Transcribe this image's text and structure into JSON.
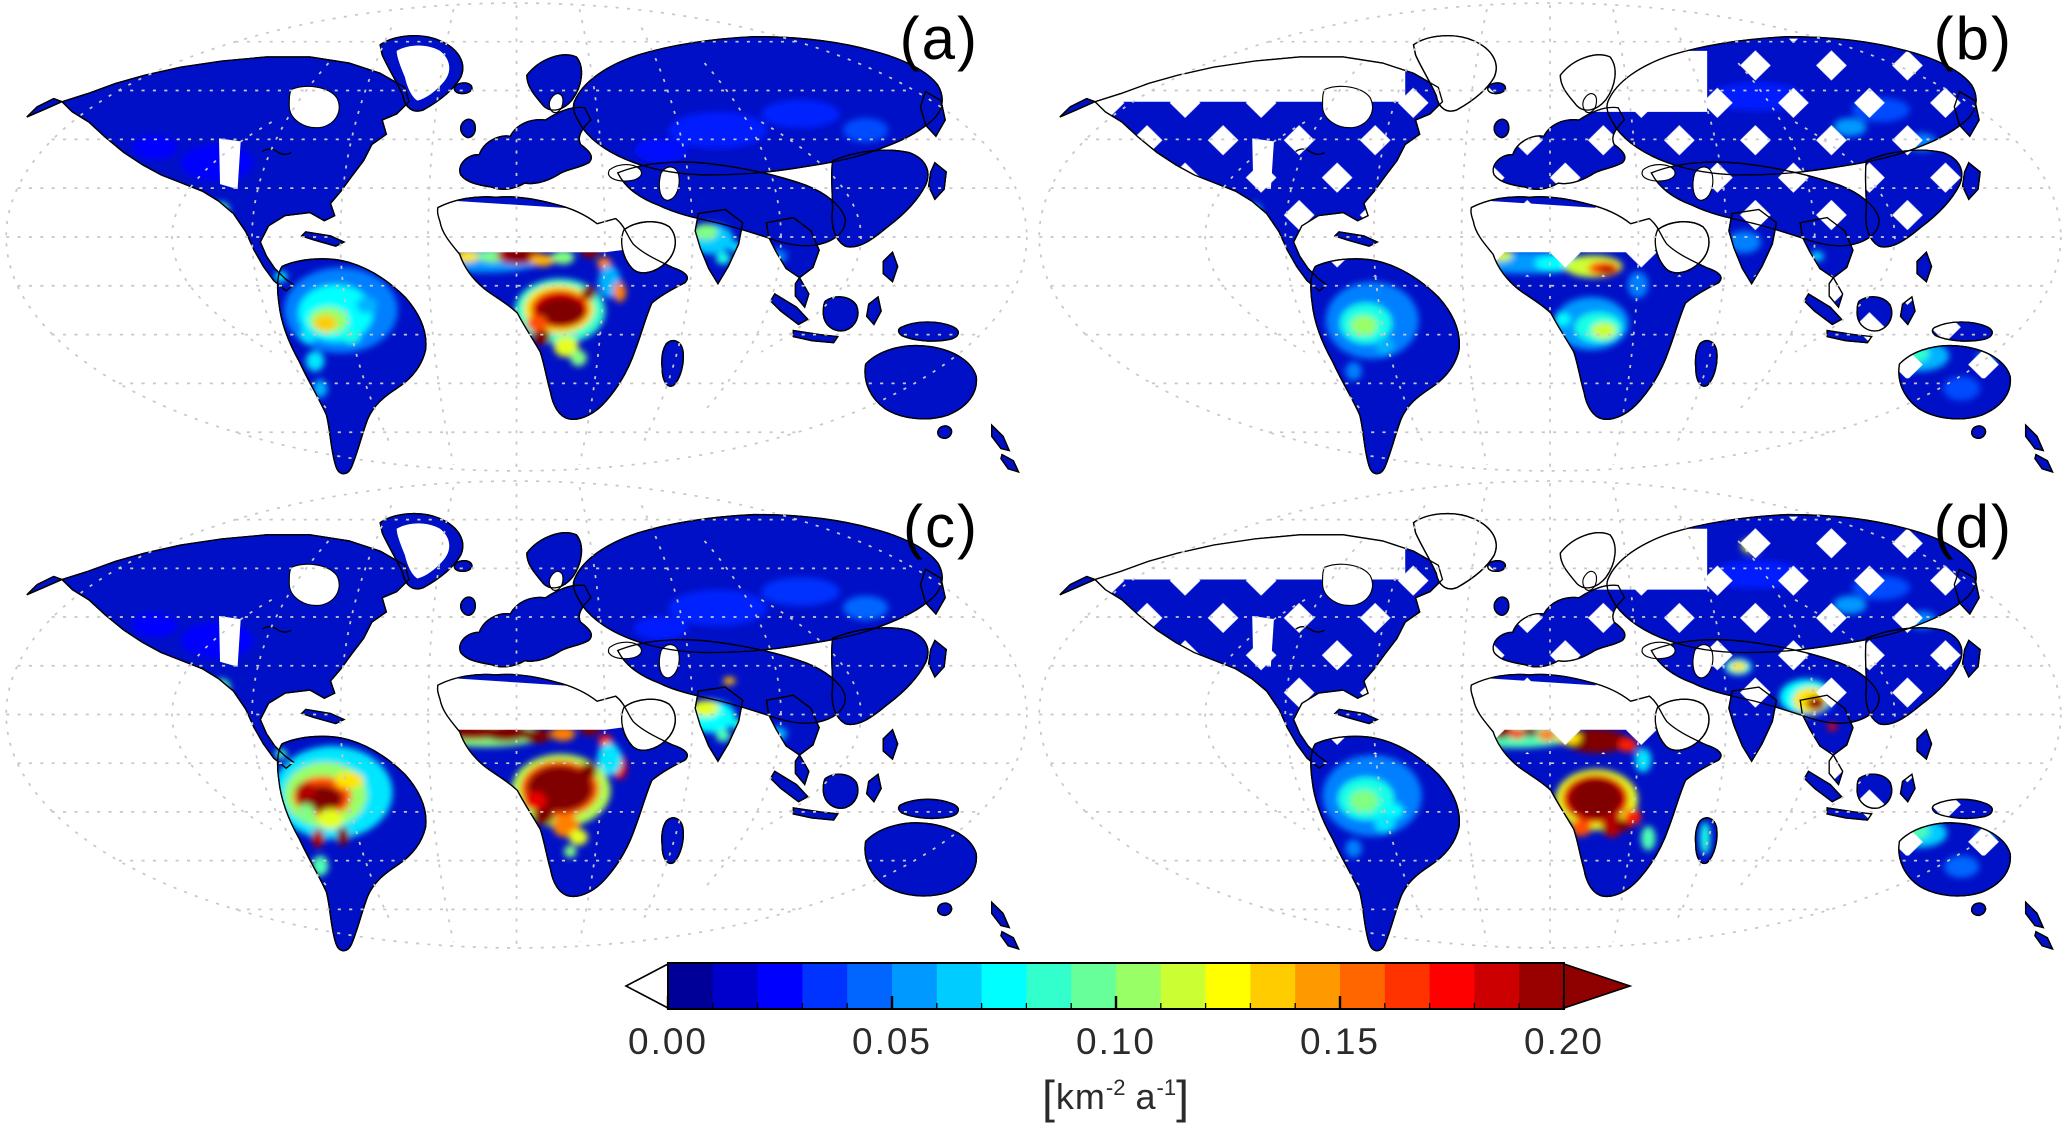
{
  "chart_data": {
    "type": "heatmap",
    "title": "",
    "description_visible_text_only": true,
    "projection": "global world map, white ocean, graticule dashed",
    "ocean_color": "#ffffff",
    "land_base_color": "#0010c6",
    "coastline_color": "#000000",
    "graticule_color": "#c8c8c8",
    "palette": [
      "#000099",
      "#0000ff",
      "#0040ff",
      "#0080ff",
      "#00ccff",
      "#00ffee",
      "#33ffbb",
      "#80ff80",
      "#ccff33",
      "#ffff00",
      "#ffcc00",
      "#ff8000",
      "#ff3300",
      "#cc0000",
      "#990000"
    ],
    "value_units": "km-2 a-1",
    "hotspot_format": "[x, y, rx, ry, value_km-2_a-1] in 1000x470 map coords, drawn bottom-to-top",
    "panels": [
      {
        "label": "(a)",
        "masked": false,
        "hotspots": [
          [
            470,
            256,
            55,
            12,
            0.055
          ],
          [
            452,
            252,
            12,
            6,
            0.13
          ],
          [
            437,
            248,
            9,
            6,
            0.2
          ],
          [
            478,
            252,
            16,
            6,
            0.1
          ],
          [
            502,
            251,
            21,
            9,
            0.19
          ],
          [
            502,
            251,
            13,
            6,
            0.23
          ],
          [
            525,
            256,
            12,
            6,
            0.14
          ],
          [
            545,
            253,
            11,
            7,
            0.1
          ],
          [
            571,
            246,
            9,
            8,
            0.21
          ],
          [
            585,
            259,
            7,
            6,
            0.15
          ],
          [
            590,
            277,
            11,
            16,
            0.06
          ],
          [
            600,
            287,
            6,
            10,
            0.15
          ],
          [
            542,
            306,
            44,
            32,
            0.085
          ],
          [
            541,
            304,
            34,
            24,
            0.13
          ],
          [
            542,
            304,
            28,
            19,
            0.18
          ],
          [
            543,
            306,
            23,
            14,
            0.24
          ],
          [
            570,
            288,
            7,
            7,
            0.22
          ],
          [
            524,
            331,
            9,
            8,
            0.2
          ],
          [
            548,
            341,
            12,
            10,
            0.12
          ],
          [
            560,
            352,
            8,
            8,
            0.1
          ],
          [
            520,
            318,
            10,
            8,
            0.16
          ],
          [
            330,
            305,
            55,
            42,
            0.05
          ],
          [
            325,
            308,
            36,
            28,
            0.075
          ],
          [
            318,
            315,
            19,
            13,
            0.105
          ],
          [
            315,
            318,
            11,
            8,
            0.135
          ],
          [
            305,
            355,
            9,
            10,
            0.07
          ],
          [
            310,
            382,
            7,
            9,
            0.06
          ],
          [
            340,
            330,
            9,
            8,
            0.08
          ],
          [
            298,
            330,
            8,
            8,
            0.07
          ],
          [
            355,
            300,
            10,
            8,
            0.06
          ],
          [
            688,
            235,
            22,
            15,
            0.065
          ],
          [
            683,
            228,
            12,
            8,
            0.1
          ],
          [
            700,
            254,
            7,
            6,
            0.08
          ],
          [
            712,
            243,
            6,
            5,
            0.07
          ],
          [
            752,
            252,
            10,
            7,
            0.05
          ],
          [
            760,
            283,
            5,
            4,
            0.06
          ],
          [
            214,
            206,
            8,
            7,
            0.085
          ],
          [
            272,
            272,
            6,
            5,
            0.075
          ],
          [
            695,
            128,
            48,
            18,
            0.03
          ],
          [
            775,
            112,
            38,
            14,
            0.032
          ],
          [
            640,
            148,
            26,
            12,
            0.028
          ],
          [
            838,
            128,
            22,
            12,
            0.04
          ],
          [
            210,
            160,
            35,
            18,
            0.025
          ],
          [
            150,
            145,
            22,
            12,
            0.025
          ]
        ]
      },
      {
        "label": "(b)",
        "masked": true,
        "hotspots": [
          [
            478,
            258,
            55,
            11,
            0.055
          ],
          [
            452,
            251,
            12,
            6,
            0.115
          ],
          [
            448,
            249,
            6,
            4,
            0.135
          ],
          [
            505,
            259,
            20,
            8,
            0.075
          ],
          [
            542,
            262,
            28,
            11,
            0.115
          ],
          [
            552,
            264,
            15,
            7,
            0.16
          ],
          [
            555,
            265,
            8,
            4,
            0.19
          ],
          [
            585,
            280,
            10,
            13,
            0.05
          ],
          [
            540,
            318,
            36,
            26,
            0.055
          ],
          [
            547,
            322,
            23,
            15,
            0.08
          ],
          [
            552,
            325,
            12,
            8,
            0.115
          ],
          [
            512,
            314,
            8,
            6,
            0.075
          ],
          [
            328,
            315,
            45,
            38,
            0.05
          ],
          [
            322,
            318,
            25,
            20,
            0.08
          ],
          [
            320,
            320,
            13,
            10,
            0.105
          ],
          [
            310,
            365,
            8,
            9,
            0.05
          ],
          [
            340,
            340,
            9,
            8,
            0.06
          ],
          [
            858,
            350,
            28,
            15,
            0.06
          ],
          [
            853,
            348,
            14,
            8,
            0.085
          ],
          [
            898,
            382,
            18,
            12,
            0.04
          ],
          [
            922,
            352,
            10,
            7,
            0.05
          ],
          [
            688,
            238,
            16,
            11,
            0.05
          ],
          [
            758,
            252,
            7,
            5,
            0.065
          ],
          [
            760,
            283,
            5,
            4,
            0.07
          ],
          [
            700,
            95,
            45,
            14,
            0.03
          ],
          [
            790,
            125,
            16,
            9,
            0.055
          ],
          [
            820,
            108,
            28,
            12,
            0.04
          ],
          [
            860,
            140,
            14,
            9,
            0.05
          ],
          [
            214,
            206,
            7,
            6,
            0.06
          ]
        ]
      },
      {
        "label": "(c)",
        "masked": false,
        "hotspots": [
          [
            470,
            253,
            58,
            12,
            0.1
          ],
          [
            455,
            250,
            40,
            8,
            0.19
          ],
          [
            452,
            249,
            30,
            7,
            0.24
          ],
          [
            437,
            248,
            10,
            7,
            0.24
          ],
          [
            490,
            251,
            22,
            9,
            0.25
          ],
          [
            520,
            254,
            14,
            7,
            0.2
          ],
          [
            545,
            252,
            12,
            7,
            0.15
          ],
          [
            571,
            246,
            10,
            8,
            0.24
          ],
          [
            586,
            259,
            7,
            6,
            0.17
          ],
          [
            600,
            285,
            7,
            12,
            0.18
          ],
          [
            590,
            277,
            12,
            16,
            0.07
          ],
          [
            543,
            308,
            48,
            36,
            0.11
          ],
          [
            542,
            306,
            38,
            28,
            0.16
          ],
          [
            542,
            306,
            32,
            23,
            0.21
          ],
          [
            543,
            307,
            27,
            18,
            0.25
          ],
          [
            570,
            288,
            8,
            8,
            0.24
          ],
          [
            526,
            333,
            10,
            9,
            0.23
          ],
          [
            548,
            343,
            13,
            11,
            0.15
          ],
          [
            560,
            354,
            9,
            8,
            0.12
          ],
          [
            518,
            318,
            11,
            9,
            0.18
          ],
          [
            552,
            368,
            6,
            6,
            0.1
          ],
          [
            322,
            310,
            58,
            46,
            0.07
          ],
          [
            315,
            312,
            40,
            32,
            0.105
          ],
          [
            312,
            314,
            28,
            20,
            0.16
          ],
          [
            310,
            316,
            22,
            13,
            0.22
          ],
          [
            296,
            308,
            10,
            8,
            0.19
          ],
          [
            308,
            355,
            6,
            9,
            0.19
          ],
          [
            332,
            353,
            6,
            9,
            0.2
          ],
          [
            320,
            336,
            12,
            10,
            0.12
          ],
          [
            310,
            382,
            8,
            10,
            0.09
          ],
          [
            296,
            330,
            9,
            9,
            0.1
          ],
          [
            338,
            298,
            14,
            8,
            0.13
          ],
          [
            688,
            235,
            24,
            16,
            0.075
          ],
          [
            683,
            227,
            13,
            8,
            0.12
          ],
          [
            706,
            200,
            6,
            4,
            0.14
          ],
          [
            700,
            254,
            7,
            6,
            0.09
          ],
          [
            715,
            243,
            7,
            5,
            0.08
          ],
          [
            214,
            206,
            9,
            8,
            0.09
          ],
          [
            272,
            272,
            6,
            5,
            0.085
          ],
          [
            752,
            252,
            10,
            7,
            0.06
          ],
          [
            695,
            128,
            48,
            18,
            0.032
          ],
          [
            775,
            112,
            38,
            14,
            0.035
          ],
          [
            640,
            148,
            26,
            12,
            0.03
          ],
          [
            838,
            128,
            22,
            12,
            0.045
          ],
          [
            210,
            160,
            35,
            18,
            0.026
          ],
          [
            150,
            145,
            22,
            12,
            0.026
          ]
        ]
      },
      {
        "label": "(d)",
        "masked": true,
        "hotspots": [
          [
            468,
            254,
            55,
            12,
            0.09
          ],
          [
            452,
            248,
            11,
            9,
            0.25
          ],
          [
            468,
            252,
            8,
            5,
            0.17
          ],
          [
            481,
            250,
            7,
            5,
            0.22
          ],
          [
            497,
            253,
            9,
            6,
            0.15
          ],
          [
            545,
            259,
            30,
            12,
            0.2
          ],
          [
            548,
            260,
            22,
            9,
            0.25
          ],
          [
            575,
            263,
            9,
            7,
            0.17
          ],
          [
            518,
            256,
            12,
            7,
            0.13
          ],
          [
            590,
            278,
            8,
            12,
            0.07
          ],
          [
            545,
            317,
            40,
            30,
            0.12
          ],
          [
            544,
            316,
            32,
            24,
            0.18
          ],
          [
            544,
            316,
            26,
            20,
            0.25
          ],
          [
            560,
            342,
            10,
            12,
            0.19
          ],
          [
            571,
            342,
            7,
            6,
            0.23
          ],
          [
            580,
            334,
            8,
            8,
            0.17
          ],
          [
            595,
            355,
            7,
            12,
            0.09
          ],
          [
            650,
            355,
            5,
            16,
            0.08
          ],
          [
            530,
            345,
            10,
            8,
            0.16
          ],
          [
            748,
            216,
            26,
            18,
            0.075
          ],
          [
            752,
            219,
            17,
            13,
            0.13
          ],
          [
            757,
            222,
            9,
            7,
            0.195
          ],
          [
            773,
            245,
            5,
            4,
            0.18
          ],
          [
            682,
            186,
            13,
            8,
            0.08
          ],
          [
            682,
            186,
            8,
            5,
            0.13
          ],
          [
            760,
            283,
            6,
            5,
            0.08
          ],
          [
            844,
            333,
            10,
            5,
            0.115
          ],
          [
            328,
            313,
            48,
            40,
            0.05
          ],
          [
            322,
            316,
            27,
            21,
            0.08
          ],
          [
            320,
            318,
            14,
            11,
            0.1
          ],
          [
            340,
            340,
            10,
            9,
            0.07
          ],
          [
            310,
            365,
            8,
            9,
            0.05
          ],
          [
            350,
            328,
            8,
            7,
            0.075
          ],
          [
            858,
            350,
            26,
            14,
            0.065
          ],
          [
            854,
            348,
            13,
            8,
            0.09
          ],
          [
            898,
            383,
            17,
            11,
            0.045
          ],
          [
            922,
            352,
            10,
            7,
            0.05
          ],
          [
            694,
            67,
            9,
            7,
            0.12
          ],
          [
            694,
            67,
            5,
            4,
            0.19
          ],
          [
            700,
            95,
            45,
            14,
            0.03
          ],
          [
            790,
            125,
            16,
            9,
            0.055
          ],
          [
            820,
            108,
            28,
            12,
            0.04
          ],
          [
            860,
            140,
            14,
            9,
            0.05
          ]
        ]
      }
    ],
    "colorbar": {
      "min": 0.0,
      "max": 0.2,
      "n_segments": 20,
      "tick_labels": [
        "0.00",
        "0.05",
        "0.10",
        "0.15",
        "0.20"
      ],
      "underflow_color": "#ffffff",
      "overflow_color": "#8f0000",
      "unit_prefix": "km",
      "unit_exp1": "-2",
      "unit_mid": "a",
      "unit_exp2": "-1",
      "bracket_open": "[",
      "bracket_close": "]"
    }
  }
}
